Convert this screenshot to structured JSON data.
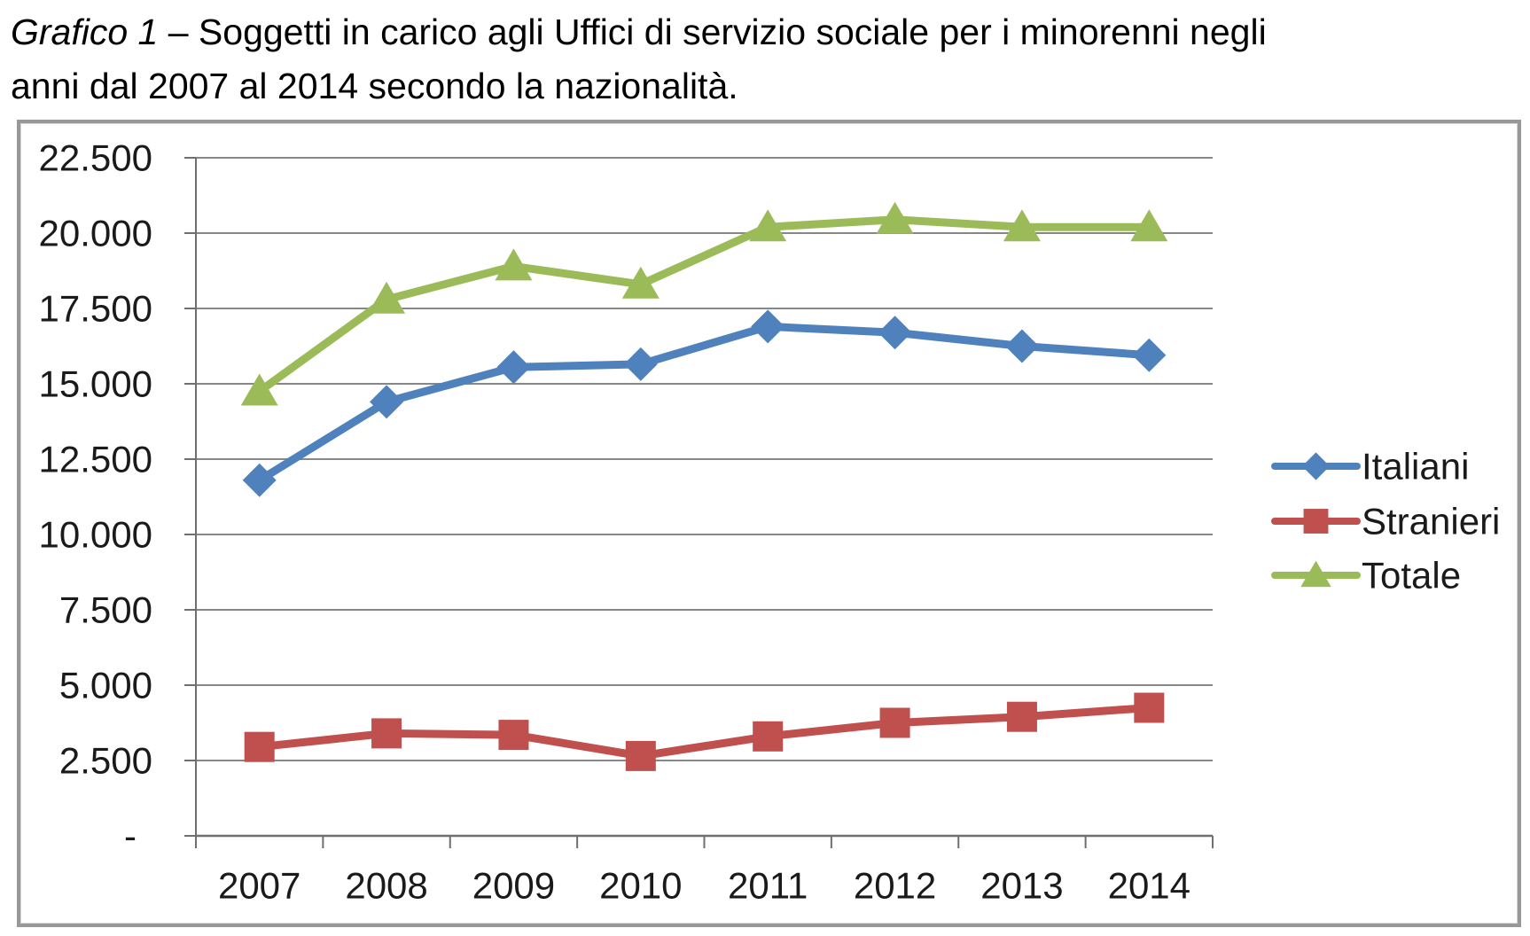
{
  "title": {
    "line1_prefix": "Grafico 1",
    "line1_rest": " – Soggetti in carico agli Uffici di servizio sociale per i minorenni negli",
    "line2": "anni dal 2007 al 2014 secondo la nazionalità."
  },
  "chart_data": {
    "type": "line",
    "categories": [
      "2007",
      "2008",
      "2009",
      "2010",
      "2011",
      "2012",
      "2013",
      "2014"
    ],
    "series": [
      {
        "name": "Italiani",
        "marker": "diamond",
        "color": "#4F81BD",
        "values": [
          11800,
          14400,
          15550,
          15650,
          16900,
          16700,
          16250,
          15950
        ]
      },
      {
        "name": "Stranieri",
        "marker": "square",
        "color": "#C0504D",
        "values": [
          2950,
          3400,
          3350,
          2650,
          3300,
          3750,
          3950,
          4250
        ]
      },
      {
        "name": "Totale",
        "marker": "triangle",
        "color": "#9BBB59",
        "values": [
          14750,
          17800,
          18900,
          18300,
          20200,
          20450,
          20200,
          20200
        ]
      }
    ],
    "y_ticks": [
      {
        "label": "22.500",
        "value": 22500
      },
      {
        "label": "20.000",
        "value": 20000
      },
      {
        "label": "17.500",
        "value": 17500
      },
      {
        "label": "15.000",
        "value": 15000
      },
      {
        "label": "12.500",
        "value": 12500
      },
      {
        "label": "10.000",
        "value": 10000
      },
      {
        "label": "7.500",
        "value": 7500
      },
      {
        "label": "5.000",
        "value": 5000
      },
      {
        "label": "2.500",
        "value": 2500
      },
      {
        "label": "-",
        "value": 0
      }
    ],
    "ylim": [
      0,
      22500
    ],
    "grid": true,
    "legend_position": "right",
    "colors": {
      "gridline": "#878787",
      "axis": "#6f6f6f",
      "text": "#1a1a1a",
      "chart_border": "#989898"
    }
  }
}
